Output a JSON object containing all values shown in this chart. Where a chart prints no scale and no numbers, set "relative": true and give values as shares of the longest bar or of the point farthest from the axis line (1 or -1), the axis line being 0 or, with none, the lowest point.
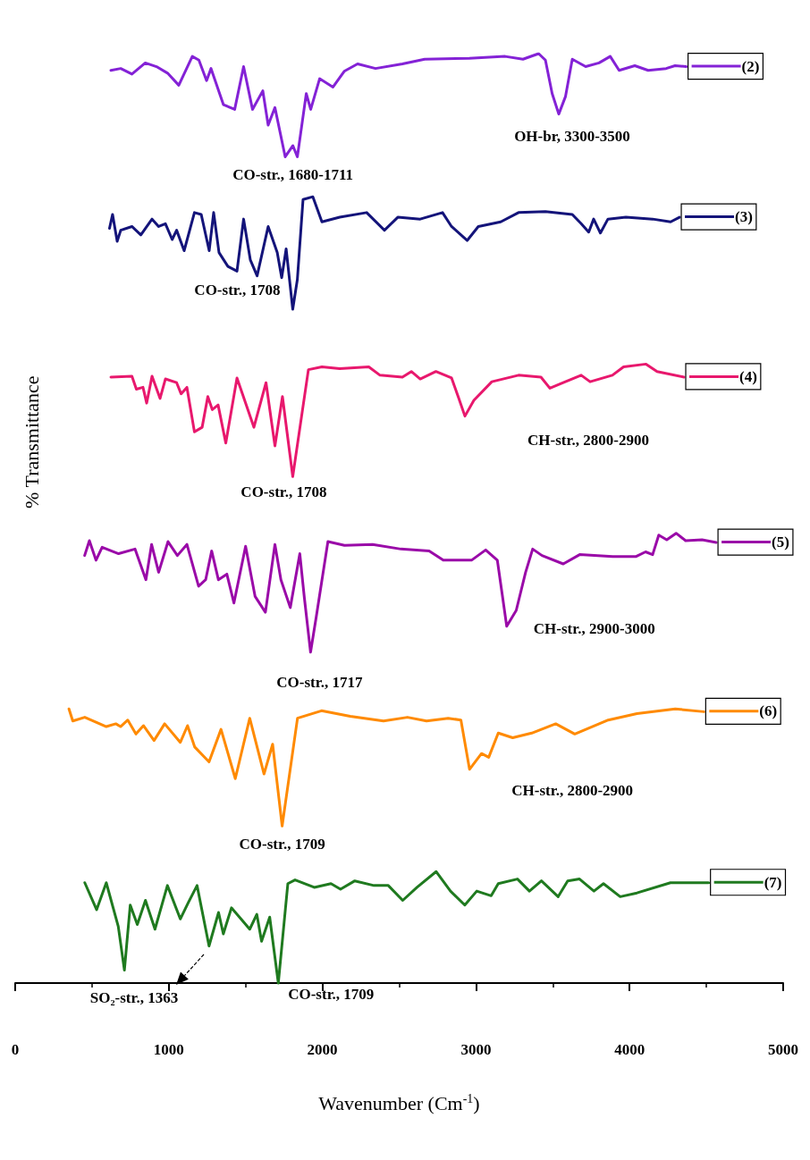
{
  "chart_data": {
    "type": "line",
    "relative": true,
    "xlabel": "Wavenumber (Cm$^{-1}$)",
    "ylabel": "% Transmittance",
    "xlim": [
      0,
      5000
    ],
    "xticks": [
      0,
      1000,
      2000,
      3000,
      4000,
      5000
    ],
    "legend": "right",
    "series": [
      {
        "name": "(2)",
        "color": "#8422d6",
        "x": [
          623,
          687,
          760,
          847,
          920,
          992,
          1065,
          1153,
          1196,
          1246,
          1275,
          1356,
          1429,
          1487,
          1545,
          1612,
          1647,
          1691,
          1758,
          1808,
          1837,
          1895,
          1924,
          1982,
          2069,
          2142,
          2229,
          2346,
          2521,
          2666,
          2957,
          3190,
          3306,
          3408,
          3452,
          3496,
          3539,
          3583,
          3627,
          3714,
          3801,
          3874,
          3932,
          4034,
          4121,
          4238,
          4296,
          4369
        ],
        "values": [
          0.982,
          0.984,
          0.978,
          0.99,
          0.986,
          0.979,
          0.966,
          0.997,
          0.993,
          0.971,
          0.984,
          0.945,
          0.94,
          0.986,
          0.94,
          0.96,
          0.923,
          0.942,
          0.889,
          0.901,
          0.889,
          0.957,
          0.94,
          0.973,
          0.964,
          0.981,
          0.989,
          0.984,
          0.989,
          0.994,
          0.995,
          0.997,
          0.994,
          1.0,
          0.993,
          0.957,
          0.935,
          0.954,
          0.994,
          0.986,
          0.99,
          0.997,
          0.982,
          0.987,
          0.982,
          0.984,
          0.987,
          0.986
        ]
      },
      {
        "name": "(3)",
        "color": "#14147a",
        "x": [
          614,
          634,
          664,
          687,
          760,
          818,
          891,
          934,
          978,
          1022,
          1051,
          1100,
          1167,
          1211,
          1263,
          1292,
          1327,
          1385,
          1444,
          1487,
          1531,
          1575,
          1647,
          1706,
          1735,
          1764,
          1807,
          1837,
          1874,
          1938,
          1997,
          2113,
          2288,
          2404,
          2491,
          2637,
          2782,
          2841,
          2943,
          3015,
          3161,
          3277,
          3452,
          3627,
          3685,
          3734,
          3766,
          3810,
          3859,
          3976,
          4150,
          4267,
          4325
        ],
        "values": [
          0.812,
          0.827,
          0.798,
          0.81,
          0.814,
          0.805,
          0.822,
          0.814,
          0.817,
          0.8,
          0.81,
          0.788,
          0.829,
          0.827,
          0.788,
          0.829,
          0.786,
          0.771,
          0.766,
          0.822,
          0.778,
          0.761,
          0.814,
          0.786,
          0.759,
          0.79,
          0.725,
          0.757,
          0.843,
          0.846,
          0.819,
          0.824,
          0.829,
          0.81,
          0.824,
          0.822,
          0.829,
          0.814,
          0.799,
          0.814,
          0.819,
          0.829,
          0.83,
          0.827,
          0.817,
          0.808,
          0.822,
          0.807,
          0.822,
          0.824,
          0.822,
          0.819,
          0.824
        ]
      },
      {
        "name": "(4)",
        "color": "#e8186d",
        "x": [
          623,
          760,
          789,
          832,
          856,
          891,
          943,
          978,
          1051,
          1080,
          1118,
          1167,
          1217,
          1254,
          1283,
          1321,
          1371,
          1444,
          1554,
          1633,
          1691,
          1740,
          1807,
          1909,
          1997,
          2113,
          2302,
          2375,
          2521,
          2579,
          2637,
          2739,
          2841,
          2884,
          2928,
          2986,
          3103,
          3277,
          3423,
          3481,
          3568,
          3685,
          3743,
          3888,
          3961,
          4107,
          4179,
          4354
        ],
        "values": [
          0.652,
          0.653,
          0.639,
          0.641,
          0.624,
          0.653,
          0.629,
          0.65,
          0.646,
          0.634,
          0.641,
          0.593,
          0.598,
          0.631,
          0.617,
          0.622,
          0.581,
          0.651,
          0.598,
          0.646,
          0.578,
          0.631,
          0.545,
          0.66,
          0.663,
          0.661,
          0.663,
          0.654,
          0.652,
          0.658,
          0.65,
          0.658,
          0.651,
          0.631,
          0.61,
          0.627,
          0.647,
          0.654,
          0.652,
          0.64,
          0.646,
          0.654,
          0.647,
          0.654,
          0.663,
          0.666,
          0.658,
          0.652
        ]
      },
      {
        "name": "(5)",
        "color": "#9a0aa8",
        "x": [
          452,
          483,
          526,
          566,
          673,
          780,
          851,
          888,
          934,
          995,
          1056,
          1118,
          1194,
          1240,
          1279,
          1323,
          1378,
          1424,
          1500,
          1562,
          1629,
          1691,
          1730,
          1791,
          1853,
          1883,
          1923,
          1960,
          2036,
          2144,
          2327,
          2511,
          2695,
          2787,
          2971,
          3063,
          3139,
          3170,
          3200,
          3262,
          3323,
          3369,
          3430,
          3568,
          3675,
          3890,
          4043,
          4104,
          4150,
          4190,
          4242,
          4303,
          4365,
          4472,
          4564
        ],
        "values": [
          0.46,
          0.476,
          0.455,
          0.469,
          0.462,
          0.467,
          0.434,
          0.472,
          0.442,
          0.475,
          0.46,
          0.472,
          0.427,
          0.434,
          0.465,
          0.434,
          0.44,
          0.409,
          0.47,
          0.416,
          0.399,
          0.472,
          0.434,
          0.404,
          0.462,
          0.414,
          0.356,
          0.394,
          0.475,
          0.471,
          0.472,
          0.467,
          0.465,
          0.455,
          0.455,
          0.466,
          0.455,
          0.419,
          0.384,
          0.401,
          0.442,
          0.467,
          0.46,
          0.451,
          0.461,
          0.459,
          0.459,
          0.464,
          0.461,
          0.482,
          0.477,
          0.484,
          0.476,
          0.477,
          0.474
        ]
      },
      {
        "name": "(6)",
        "color": "#ff8a00",
        "x": [
          350,
          375,
          453,
          593,
          655,
          686,
          733,
          786,
          835,
          904,
          973,
          1075,
          1122,
          1169,
          1262,
          1340,
          1433,
          1527,
          1620,
          1676,
          1738,
          1838,
          1994,
          2181,
          2398,
          2554,
          2678,
          2819,
          2902,
          2958,
          3036,
          3083,
          3145,
          3239,
          3363,
          3519,
          3643,
          3861,
          4048,
          4297,
          4484
        ],
        "values": [
          0.295,
          0.282,
          0.286,
          0.276,
          0.279,
          0.276,
          0.283,
          0.268,
          0.277,
          0.261,
          0.279,
          0.259,
          0.277,
          0.254,
          0.238,
          0.273,
          0.22,
          0.285,
          0.225,
          0.257,
          0.169,
          0.285,
          0.293,
          0.287,
          0.282,
          0.286,
          0.282,
          0.285,
          0.283,
          0.23,
          0.247,
          0.243,
          0.269,
          0.264,
          0.269,
          0.279,
          0.268,
          0.283,
          0.29,
          0.295,
          0.292
        ]
      },
      {
        "name": "(7)",
        "color": "#1f7a1f",
        "x": [
          453,
          530,
          593,
          671,
          711,
          749,
          795,
          848,
          910,
          991,
          1075,
          1128,
          1184,
          1262,
          1324,
          1355,
          1408,
          1470,
          1527,
          1573,
          1604,
          1657,
          1713,
          1775,
          1822,
          1947,
          2056,
          2118,
          2211,
          2336,
          2429,
          2523,
          2616,
          2741,
          2834,
          2927,
          3005,
          3099,
          3145,
          3270,
          3348,
          3426,
          3535,
          3597,
          3674,
          3768,
          3830,
          3939,
          4048,
          4266,
          4515
        ],
        "values": [
          0.108,
          0.079,
          0.108,
          0.061,
          0.014,
          0.084,
          0.063,
          0.089,
          0.058,
          0.105,
          0.069,
          0.087,
          0.105,
          0.04,
          0.076,
          0.053,
          0.081,
          0.069,
          0.058,
          0.074,
          0.045,
          0.071,
          0,
          0.107,
          0.111,
          0.103,
          0.107,
          0.101,
          0.11,
          0.105,
          0.105,
          0.089,
          0.103,
          0.12,
          0.099,
          0.084,
          0.099,
          0.094,
          0.107,
          0.112,
          0.099,
          0.11,
          0.093,
          0.11,
          0.112,
          0.099,
          0.107,
          0.093,
          0.097,
          0.108,
          0.108
        ]
      }
    ],
    "annotations": [
      {
        "text": "CO-str., 1680-1711",
        "x": 1808,
        "y": 0.889
      },
      {
        "text": "OH-br, 3300-3500",
        "x": 3539,
        "y": 0.935
      },
      {
        "text": "CO-str., 1708",
        "x": 1807,
        "y": 0.725
      },
      "CH-str., 2800-2900",
      {
        "text": "CO-str., 1708",
        "x": 1807,
        "y": 0.545
      },
      {
        "text": "CH-str., 2900-3000",
        "x": 3200,
        "y": 0.384
      },
      {
        "text": "CO-str., 1717",
        "x": 1923,
        "y": 0.356
      },
      {
        "text": "CH-str., 2800-2900",
        "x": 2958,
        "y": 0.23
      },
      {
        "text": "CO-str., 1709",
        "x": 1738,
        "y": 0.169
      },
      "SO₂-str., 1363",
      {
        "text": "CO-str., 1709",
        "x": 1713,
        "y": 0
      }
    ]
  }
}
